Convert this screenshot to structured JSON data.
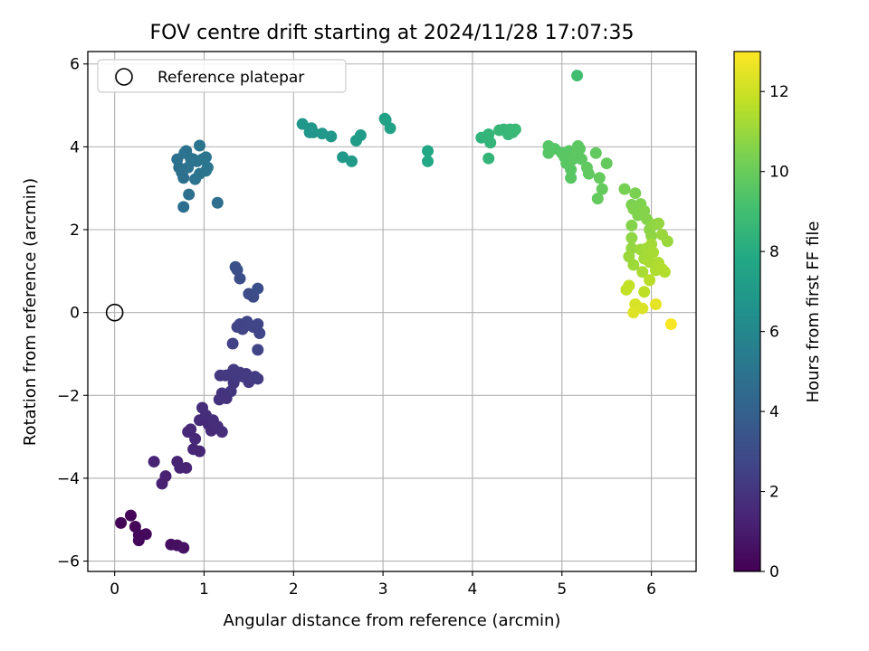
{
  "chart_data": {
    "type": "scatter",
    "title": "FOV centre drift starting at 2024/11/28 17:07:35",
    "xlabel": "Angular distance from reference (arcmin)",
    "ylabel": "Rotation from reference (arcmin)",
    "xlim": [
      -0.3,
      6.5
    ],
    "ylim": [
      -6.25,
      6.3
    ],
    "x_ticks": [
      0,
      1,
      2,
      3,
      4,
      5,
      6
    ],
    "y_ticks": [
      -6,
      -4,
      -2,
      0,
      2,
      4,
      6
    ],
    "grid": true,
    "legend": {
      "location": "upper-left",
      "entries": [
        "Reference platepar"
      ]
    },
    "reference_point": {
      "x": 0,
      "y": 0
    },
    "colorbar": {
      "label": "Hours from first FF file",
      "colormap": "viridis",
      "range": [
        0,
        13
      ],
      "ticks": [
        0,
        2,
        4,
        6,
        8,
        10,
        12
      ]
    },
    "points": [
      {
        "x": 0.07,
        "y": -5.08,
        "c": 0.1
      },
      {
        "x": 0.18,
        "y": -4.9,
        "c": 0.2
      },
      {
        "x": 0.23,
        "y": -5.17,
        "c": 0.2
      },
      {
        "x": 0.27,
        "y": -5.37,
        "c": 0.3
      },
      {
        "x": 0.27,
        "y": -5.5,
        "c": 0.3
      },
      {
        "x": 0.35,
        "y": -5.35,
        "c": 0.3
      },
      {
        "x": 0.63,
        "y": -5.6,
        "c": 0.5
      },
      {
        "x": 0.7,
        "y": -5.62,
        "c": 0.5
      },
      {
        "x": 0.77,
        "y": -5.68,
        "c": 0.6
      },
      {
        "x": 0.44,
        "y": -3.6,
        "c": 1.3
      },
      {
        "x": 0.53,
        "y": -4.13,
        "c": 1.2
      },
      {
        "x": 0.57,
        "y": -3.95,
        "c": 1.2
      },
      {
        "x": 0.7,
        "y": -3.6,
        "c": 1.3
      },
      {
        "x": 0.73,
        "y": -3.75,
        "c": 1.3
      },
      {
        "x": 0.8,
        "y": -3.75,
        "c": 1.3
      },
      {
        "x": 0.82,
        "y": -2.88,
        "c": 1.5
      },
      {
        "x": 0.85,
        "y": -2.82,
        "c": 1.5
      },
      {
        "x": 0.88,
        "y": -3.3,
        "c": 1.4
      },
      {
        "x": 0.9,
        "y": -3.05,
        "c": 1.5
      },
      {
        "x": 0.95,
        "y": -3.35,
        "c": 1.4
      },
      {
        "x": 0.95,
        "y": -2.6,
        "c": 1.6
      },
      {
        "x": 0.98,
        "y": -2.3,
        "c": 1.7
      },
      {
        "x": 1.02,
        "y": -2.48,
        "c": 1.7
      },
      {
        "x": 1.05,
        "y": -2.7,
        "c": 1.6
      },
      {
        "x": 1.08,
        "y": -2.85,
        "c": 1.6
      },
      {
        "x": 1.1,
        "y": -2.6,
        "c": 1.7
      },
      {
        "x": 1.15,
        "y": -2.75,
        "c": 1.7
      },
      {
        "x": 1.2,
        "y": -2.88,
        "c": 1.7
      },
      {
        "x": 1.17,
        "y": -2.1,
        "c": 1.9
      },
      {
        "x": 1.2,
        "y": -1.95,
        "c": 1.9
      },
      {
        "x": 1.25,
        "y": -2.07,
        "c": 1.9
      },
      {
        "x": 1.3,
        "y": -1.9,
        "c": 2.0
      },
      {
        "x": 1.33,
        "y": -1.7,
        "c": 2.0
      },
      {
        "x": 1.18,
        "y": -1.52,
        "c": 2.1
      },
      {
        "x": 1.24,
        "y": -1.52,
        "c": 2.1
      },
      {
        "x": 1.3,
        "y": -1.48,
        "c": 2.1
      },
      {
        "x": 1.33,
        "y": -1.38,
        "c": 2.2
      },
      {
        "x": 1.37,
        "y": -1.55,
        "c": 2.2
      },
      {
        "x": 1.4,
        "y": -1.45,
        "c": 2.2
      },
      {
        "x": 1.44,
        "y": -1.55,
        "c": 2.2
      },
      {
        "x": 1.47,
        "y": -1.48,
        "c": 2.2
      },
      {
        "x": 1.5,
        "y": -1.68,
        "c": 2.2
      },
      {
        "x": 1.57,
        "y": -1.55,
        "c": 2.3
      },
      {
        "x": 1.6,
        "y": -1.6,
        "c": 2.3
      },
      {
        "x": 1.32,
        "y": -0.75,
        "c": 2.5
      },
      {
        "x": 1.37,
        "y": -0.35,
        "c": 2.6
      },
      {
        "x": 1.4,
        "y": -0.28,
        "c": 2.6
      },
      {
        "x": 1.43,
        "y": -0.4,
        "c": 2.6
      },
      {
        "x": 1.48,
        "y": -0.22,
        "c": 2.7
      },
      {
        "x": 1.5,
        "y": -0.3,
        "c": 2.7
      },
      {
        "x": 1.55,
        "y": -0.35,
        "c": 2.7
      },
      {
        "x": 1.6,
        "y": -0.28,
        "c": 2.7
      },
      {
        "x": 1.62,
        "y": -0.5,
        "c": 2.7
      },
      {
        "x": 1.6,
        "y": -0.9,
        "c": 2.6
      },
      {
        "x": 1.35,
        "y": 1.1,
        "c": 3.2
      },
      {
        "x": 1.37,
        "y": 1.03,
        "c": 3.2
      },
      {
        "x": 1.4,
        "y": 0.82,
        "c": 3.1
      },
      {
        "x": 1.5,
        "y": 0.45,
        "c": 3.0
      },
      {
        "x": 1.55,
        "y": 0.38,
        "c": 3.0
      },
      {
        "x": 1.6,
        "y": 0.58,
        "c": 3.1
      },
      {
        "x": 0.7,
        "y": 3.7,
        "c": 4.8
      },
      {
        "x": 0.72,
        "y": 3.5,
        "c": 4.8
      },
      {
        "x": 0.75,
        "y": 3.38,
        "c": 4.8
      },
      {
        "x": 0.77,
        "y": 3.25,
        "c": 4.8
      },
      {
        "x": 0.78,
        "y": 3.85,
        "c": 4.9
      },
      {
        "x": 0.8,
        "y": 3.9,
        "c": 4.9
      },
      {
        "x": 0.82,
        "y": 3.5,
        "c": 4.9
      },
      {
        "x": 0.85,
        "y": 3.72,
        "c": 5.0
      },
      {
        "x": 0.88,
        "y": 3.7,
        "c": 5.0
      },
      {
        "x": 0.92,
        "y": 3.65,
        "c": 5.0
      },
      {
        "x": 0.9,
        "y": 3.22,
        "c": 5.0
      },
      {
        "x": 0.95,
        "y": 3.35,
        "c": 5.0
      },
      {
        "x": 0.95,
        "y": 4.03,
        "c": 5.1
      },
      {
        "x": 0.98,
        "y": 3.7,
        "c": 5.1
      },
      {
        "x": 1.02,
        "y": 3.75,
        "c": 5.1
      },
      {
        "x": 1.02,
        "y": 3.42,
        "c": 5.1
      },
      {
        "x": 1.04,
        "y": 3.5,
        "c": 5.1
      },
      {
        "x": 0.83,
        "y": 2.85,
        "c": 4.8
      },
      {
        "x": 0.77,
        "y": 2.55,
        "c": 4.7
      },
      {
        "x": 1.15,
        "y": 2.65,
        "c": 4.7
      },
      {
        "x": 2.1,
        "y": 4.55,
        "c": 6.8
      },
      {
        "x": 2.18,
        "y": 4.35,
        "c": 6.8
      },
      {
        "x": 2.2,
        "y": 4.45,
        "c": 6.8
      },
      {
        "x": 2.22,
        "y": 4.35,
        "c": 6.8
      },
      {
        "x": 2.32,
        "y": 4.32,
        "c": 6.9
      },
      {
        "x": 2.42,
        "y": 4.25,
        "c": 6.9
      },
      {
        "x": 2.55,
        "y": 3.75,
        "c": 7.0
      },
      {
        "x": 2.65,
        "y": 3.65,
        "c": 7.0
      },
      {
        "x": 2.7,
        "y": 4.15,
        "c": 7.1
      },
      {
        "x": 2.75,
        "y": 4.28,
        "c": 7.1
      },
      {
        "x": 3.02,
        "y": 4.68,
        "c": 7.4
      },
      {
        "x": 3.03,
        "y": 4.65,
        "c": 7.4
      },
      {
        "x": 3.08,
        "y": 4.45,
        "c": 7.4
      },
      {
        "x": 3.5,
        "y": 3.9,
        "c": 7.8
      },
      {
        "x": 3.5,
        "y": 3.65,
        "c": 7.8
      },
      {
        "x": 4.1,
        "y": 4.22,
        "c": 8.4
      },
      {
        "x": 4.17,
        "y": 4.22,
        "c": 8.5
      },
      {
        "x": 4.18,
        "y": 4.3,
        "c": 8.5
      },
      {
        "x": 4.2,
        "y": 4.1,
        "c": 8.5
      },
      {
        "x": 4.18,
        "y": 3.72,
        "c": 8.5
      },
      {
        "x": 4.3,
        "y": 4.4,
        "c": 8.6
      },
      {
        "x": 4.35,
        "y": 4.42,
        "c": 8.6
      },
      {
        "x": 4.4,
        "y": 4.3,
        "c": 8.6
      },
      {
        "x": 4.42,
        "y": 4.42,
        "c": 8.6
      },
      {
        "x": 4.45,
        "y": 4.35,
        "c": 8.7
      },
      {
        "x": 4.48,
        "y": 4.42,
        "c": 8.7
      },
      {
        "x": 4.85,
        "y": 4.02,
        "c": 9.5
      },
      {
        "x": 4.85,
        "y": 3.85,
        "c": 9.5
      },
      {
        "x": 4.92,
        "y": 3.95,
        "c": 9.5
      },
      {
        "x": 5.0,
        "y": 3.85,
        "c": 9.6
      },
      {
        "x": 5.03,
        "y": 3.75,
        "c": 9.6
      },
      {
        "x": 5.05,
        "y": 3.6,
        "c": 9.6
      },
      {
        "x": 5.08,
        "y": 3.9,
        "c": 9.6
      },
      {
        "x": 5.1,
        "y": 3.45,
        "c": 9.6
      },
      {
        "x": 5.1,
        "y": 3.25,
        "c": 9.6
      },
      {
        "x": 5.12,
        "y": 3.7,
        "c": 9.7
      },
      {
        "x": 5.15,
        "y": 3.8,
        "c": 9.7
      },
      {
        "x": 5.18,
        "y": 4.02,
        "c": 9.7
      },
      {
        "x": 5.2,
        "y": 3.95,
        "c": 9.7
      },
      {
        "x": 5.22,
        "y": 3.7,
        "c": 9.7
      },
      {
        "x": 5.28,
        "y": 3.5,
        "c": 9.8
      },
      {
        "x": 5.3,
        "y": 3.35,
        "c": 9.8
      },
      {
        "x": 5.38,
        "y": 3.85,
        "c": 9.8
      },
      {
        "x": 5.42,
        "y": 3.25,
        "c": 9.9
      },
      {
        "x": 5.4,
        "y": 2.75,
        "c": 9.9
      },
      {
        "x": 5.45,
        "y": 2.98,
        "c": 9.9
      },
      {
        "x": 5.5,
        "y": 3.6,
        "c": 9.9
      },
      {
        "x": 5.17,
        "y": 5.72,
        "c": 9.0
      },
      {
        "x": 5.7,
        "y": 2.98,
        "c": 10.3
      },
      {
        "x": 5.78,
        "y": 2.6,
        "c": 10.4
      },
      {
        "x": 5.82,
        "y": 2.88,
        "c": 10.4
      },
      {
        "x": 5.8,
        "y": 2.5,
        "c": 10.5
      },
      {
        "x": 5.85,
        "y": 2.35,
        "c": 10.5
      },
      {
        "x": 5.88,
        "y": 2.62,
        "c": 10.5
      },
      {
        "x": 5.92,
        "y": 2.45,
        "c": 10.6
      },
      {
        "x": 5.95,
        "y": 2.25,
        "c": 10.6
      },
      {
        "x": 5.98,
        "y": 2.0,
        "c": 10.7
      },
      {
        "x": 6.0,
        "y": 1.85,
        "c": 10.8
      },
      {
        "x": 6.03,
        "y": 2.12,
        "c": 10.8
      },
      {
        "x": 6.08,
        "y": 2.15,
        "c": 10.9
      },
      {
        "x": 6.12,
        "y": 1.88,
        "c": 11.0
      },
      {
        "x": 6.18,
        "y": 1.72,
        "c": 11.0
      },
      {
        "x": 5.78,
        "y": 2.1,
        "c": 10.6
      },
      {
        "x": 5.78,
        "y": 1.8,
        "c": 10.8
      },
      {
        "x": 5.78,
        "y": 1.55,
        "c": 10.9
      },
      {
        "x": 5.75,
        "y": 1.35,
        "c": 11.0
      },
      {
        "x": 5.8,
        "y": 1.15,
        "c": 11.1
      },
      {
        "x": 5.88,
        "y": 1.52,
        "c": 11.1
      },
      {
        "x": 5.92,
        "y": 1.3,
        "c": 11.2
      },
      {
        "x": 5.9,
        "y": 0.98,
        "c": 11.3
      },
      {
        "x": 5.95,
        "y": 1.55,
        "c": 11.2
      },
      {
        "x": 5.98,
        "y": 1.22,
        "c": 11.3
      },
      {
        "x": 6.0,
        "y": 1.65,
        "c": 11.2
      },
      {
        "x": 6.02,
        "y": 1.45,
        "c": 11.3
      },
      {
        "x": 6.05,
        "y": 1.02,
        "c": 11.4
      },
      {
        "x": 6.08,
        "y": 1.2,
        "c": 11.4
      },
      {
        "x": 6.12,
        "y": 1.05,
        "c": 11.5
      },
      {
        "x": 6.15,
        "y": 0.98,
        "c": 11.5
      },
      {
        "x": 5.98,
        "y": 0.78,
        "c": 11.6
      },
      {
        "x": 5.92,
        "y": 0.5,
        "c": 11.7
      },
      {
        "x": 5.72,
        "y": 0.55,
        "c": 11.8
      },
      {
        "x": 5.75,
        "y": 0.65,
        "c": 11.8
      },
      {
        "x": 5.82,
        "y": 0.2,
        "c": 12.2
      },
      {
        "x": 5.9,
        "y": 0.1,
        "c": 12.3
      },
      {
        "x": 5.8,
        "y": 0.0,
        "c": 12.4
      },
      {
        "x": 6.05,
        "y": 0.2,
        "c": 12.5
      },
      {
        "x": 6.22,
        "y": -0.28,
        "c": 12.9
      }
    ]
  }
}
